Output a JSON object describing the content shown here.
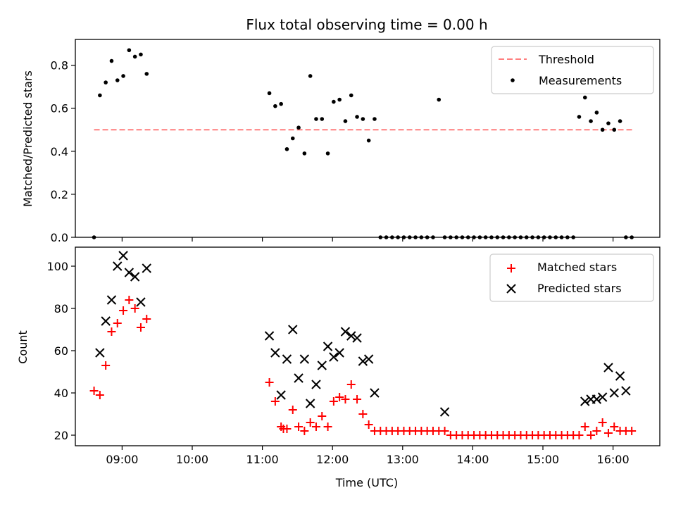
{
  "colors": {
    "threshold": "#ff7f7f",
    "measurements": "#000000",
    "matched": "#ff0000",
    "predicted": "#000000"
  },
  "chart_data": [
    {
      "type": "scatter",
      "title": "Flux total observing time = 0.00 h",
      "xlabel": "",
      "ylabel": "Matched/Predicted stars",
      "xlim": [
        "08:20",
        "16:40"
      ],
      "ylim": [
        0,
        0.92
      ],
      "yticks": [
        0.0,
        0.2,
        0.4,
        0.6,
        0.8
      ],
      "ytick_labels": [
        "0.0",
        "0.2",
        "0.4",
        "0.6",
        "0.8"
      ],
      "legend": "top-right",
      "series": [
        {
          "name": "Threshold",
          "kind": "dashed-line",
          "x": [
            "08:36",
            "16:18"
          ],
          "y": [
            0.5,
            0.5
          ]
        },
        {
          "name": "Measurements",
          "kind": "dots",
          "x": [
            "08:36",
            "08:41",
            "08:46",
            "08:51",
            "08:56",
            "09:01",
            "09:06",
            "09:11",
            "09:16",
            "09:21",
            "11:06",
            "11:11",
            "11:16",
            "11:21",
            "11:26",
            "11:31",
            "11:36",
            "11:41",
            "11:46",
            "11:51",
            "11:56",
            "12:01",
            "12:06",
            "12:11",
            "12:16",
            "12:21",
            "12:26",
            "12:31",
            "12:36",
            "12:41",
            "12:46",
            "12:51",
            "12:56",
            "13:01",
            "13:06",
            "13:11",
            "13:16",
            "13:21",
            "13:26",
            "13:31",
            "13:36",
            "13:41",
            "13:46",
            "13:51",
            "13:56",
            "14:01",
            "14:06",
            "14:11",
            "14:16",
            "14:21",
            "14:26",
            "14:31",
            "14:36",
            "14:41",
            "14:46",
            "14:51",
            "14:56",
            "15:01",
            "15:06",
            "15:11",
            "15:16",
            "15:21",
            "15:26",
            "15:31",
            "15:36",
            "15:41",
            "15:46",
            "15:51",
            "15:56",
            "16:01",
            "16:06",
            "16:11",
            "16:16"
          ],
          "y": [
            0.0,
            0.66,
            0.72,
            0.82,
            0.73,
            0.75,
            0.87,
            0.84,
            0.85,
            0.76,
            0.67,
            0.61,
            0.62,
            0.41,
            0.46,
            0.51,
            0.39,
            0.75,
            0.55,
            0.55,
            0.39,
            0.63,
            0.64,
            0.54,
            0.66,
            0.56,
            0.55,
            0.45,
            0.55,
            0.0,
            0.0,
            0.0,
            0.0,
            0.0,
            0.0,
            0.0,
            0.0,
            0.0,
            0.0,
            0.64,
            0.0,
            0.0,
            0.0,
            0.0,
            0.0,
            0.0,
            0.0,
            0.0,
            0.0,
            0.0,
            0.0,
            0.0,
            0.0,
            0.0,
            0.0,
            0.0,
            0.0,
            0.0,
            0.0,
            0.0,
            0.0,
            0.0,
            0.0,
            0.56,
            0.65,
            0.54,
            0.58,
            0.5,
            0.53,
            0.5,
            0.54,
            0.0,
            0.0
          ]
        }
      ]
    },
    {
      "type": "scatter",
      "title": "",
      "xlabel": "Time (UTC)",
      "ylabel": "Count",
      "xlim": [
        "08:20",
        "16:40"
      ],
      "ylim": [
        15,
        109
      ],
      "xticks": [
        "09:00",
        "10:00",
        "11:00",
        "12:00",
        "13:00",
        "14:00",
        "15:00",
        "16:00"
      ],
      "yticks": [
        20,
        40,
        60,
        80,
        100
      ],
      "ytick_labels": [
        "20",
        "40",
        "60",
        "80",
        "100"
      ],
      "legend": "top-right",
      "series": [
        {
          "name": "Matched stars",
          "kind": "plus",
          "x": [
            "08:36",
            "08:41",
            "08:46",
            "08:51",
            "08:56",
            "09:01",
            "09:06",
            "09:11",
            "09:16",
            "09:21",
            "11:06",
            "11:11",
            "11:16",
            "11:18",
            "11:21",
            "11:26",
            "11:31",
            "11:36",
            "11:41",
            "11:46",
            "11:51",
            "11:56",
            "12:01",
            "12:06",
            "12:11",
            "12:16",
            "12:21",
            "12:26",
            "12:31",
            "12:36",
            "12:41",
            "12:46",
            "12:51",
            "12:56",
            "13:01",
            "13:06",
            "13:11",
            "13:16",
            "13:21",
            "13:26",
            "13:31",
            "13:36",
            "13:41",
            "13:46",
            "13:51",
            "13:56",
            "14:01",
            "14:06",
            "14:11",
            "14:16",
            "14:21",
            "14:26",
            "14:31",
            "14:36",
            "14:41",
            "14:46",
            "14:51",
            "14:56",
            "15:01",
            "15:06",
            "15:11",
            "15:16",
            "15:21",
            "15:26",
            "15:31",
            "15:36",
            "15:41",
            "15:46",
            "15:51",
            "15:56",
            "16:01",
            "16:06",
            "16:11",
            "16:16"
          ],
          "y": [
            41,
            39,
            53,
            69,
            73,
            79,
            84,
            80,
            71,
            75,
            45,
            36,
            24,
            23,
            23,
            32,
            24,
            22,
            26,
            24,
            29,
            24,
            36,
            38,
            37,
            44,
            37,
            30,
            25,
            22,
            22,
            22,
            22,
            22,
            22,
            22,
            22,
            22,
            22,
            22,
            22,
            22,
            20,
            20,
            20,
            20,
            20,
            20,
            20,
            20,
            20,
            20,
            20,
            20,
            20,
            20,
            20,
            20,
            20,
            20,
            20,
            20,
            20,
            20,
            20,
            24,
            20,
            22,
            26,
            21,
            24,
            22,
            22,
            22
          ]
        },
        {
          "name": "Predicted stars",
          "kind": "cross",
          "x": [
            "08:41",
            "08:46",
            "08:51",
            "08:56",
            "09:01",
            "09:06",
            "09:11",
            "09:16",
            "09:21",
            "11:06",
            "11:11",
            "11:16",
            "11:21",
            "11:26",
            "11:31",
            "11:36",
            "11:41",
            "11:46",
            "11:51",
            "11:56",
            "12:01",
            "12:06",
            "12:11",
            "12:16",
            "12:21",
            "12:26",
            "12:31",
            "12:36",
            "13:36",
            "15:36",
            "15:41",
            "15:46",
            "15:51",
            "15:56",
            "16:01",
            "16:06",
            "16:11"
          ],
          "y": [
            59,
            74,
            84,
            100,
            105,
            97,
            95,
            83,
            99,
            67,
            59,
            39,
            56,
            70,
            47,
            56,
            35,
            44,
            53,
            62,
            57,
            59,
            69,
            67,
            66,
            55,
            56,
            40,
            31,
            36,
            37,
            37,
            38,
            52,
            40,
            48,
            41
          ]
        }
      ]
    }
  ]
}
